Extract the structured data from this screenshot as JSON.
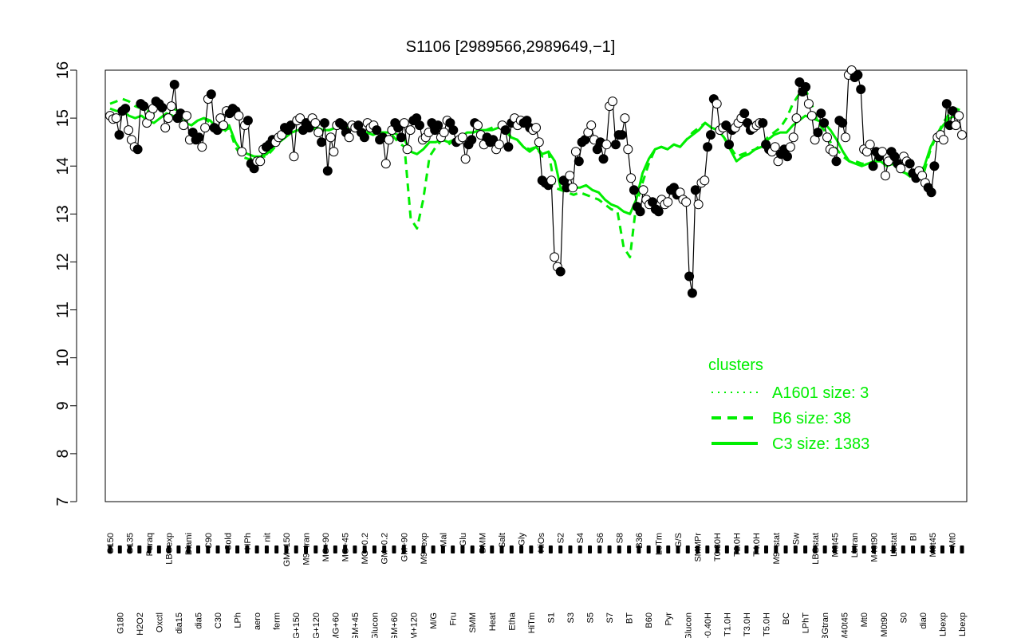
{
  "chart_data": {
    "type": "line",
    "title": "S1106 [2989566,2989649,−1]",
    "xlabel": "",
    "ylabel": "",
    "ylim": [
      7,
      16
    ],
    "yticks": [
      7,
      8,
      9,
      10,
      11,
      12,
      13,
      14,
      15,
      16
    ],
    "grid": false,
    "legend": {
      "title": "clusters",
      "position": "right",
      "entries": [
        {
          "label": "A1601 size: 3",
          "style": "dotted"
        },
        {
          "label": "B6 size: 38",
          "style": "dashed"
        },
        {
          "label": "C3 size: 1383",
          "style": "solid"
        }
      ]
    },
    "colors": {
      "accent": "#00ee00",
      "points": "#000000"
    },
    "x_tick_labels": [
      "G150",
      "G180",
      "G135",
      "H2O2",
      "Paraq",
      "Oxctl",
      "LBGexp",
      "dia15",
      "Diami",
      "dia5",
      "C90",
      "C30",
      "Cold",
      "LPh",
      "HPh",
      "aero",
      "nit",
      "ferm",
      "GM+150",
      "MG+150",
      "M9−tran",
      "MG+120",
      "MG+90",
      "MG+60",
      "MG+45",
      "GM+45",
      "MG−0.2",
      "Glucon",
      "GM−0.2",
      "GM+60",
      "GM+90",
      "GM+120",
      "M9−exp",
      "M/G",
      "Mal",
      "Fru",
      "Glu",
      "SMM",
      "BMM",
      "Heat",
      "Salt",
      "Etha",
      "Gly",
      "HiTm",
      "HiOs",
      "S1",
      "S2",
      "S3",
      "S4",
      "S5",
      "S6",
      "S7",
      "S8",
      "BT",
      "B36",
      "B60",
      "LoTm",
      "Pyr",
      "G/S",
      "Glucon",
      "SMMPr",
      "T−0.40H",
      "T0.30H",
      "T1.0H",
      "T2.0H",
      "T3.0H",
      "T4.0H",
      "T5.0H",
      "M9−stat",
      "BC",
      "Sw",
      "LPhT",
      "LBGstat",
      "LBGtran",
      "M0t45",
      "M40t45",
      "Lbtran",
      "Mt0",
      "M40t90",
      "M0t90",
      "Lbstat",
      "S0",
      "BI",
      "dia0",
      "M0t45",
      "Lbexp",
      "Mt0",
      "Lbexp"
    ],
    "series": [
      {
        "style": "points",
        "values": [
          15.05,
          14.98,
          15.0,
          14.65,
          15.15,
          15.2,
          14.75,
          14.55,
          14.4,
          14.35,
          15.3,
          15.25,
          14.9,
          15.05,
          15.2,
          15.35,
          15.3,
          15.22,
          14.8,
          15.0,
          15.25,
          15.7,
          15.0,
          15.1,
          14.85,
          15.05,
          14.55,
          14.7,
          14.55,
          14.6,
          14.4,
          14.8,
          15.4,
          15.5,
          14.8,
          14.75,
          15.0,
          14.85,
          15.15,
          15.1,
          15.2,
          15.15,
          15.05,
          14.3,
          14.85,
          14.95,
          14.05,
          13.95,
          14.1,
          14.1,
          14.35,
          14.4,
          14.45,
          14.55,
          14.5,
          14.6,
          14.65,
          14.8,
          14.75,
          14.85,
          14.2,
          14.95,
          15.0,
          14.75,
          14.9,
          14.8,
          15.0,
          14.9,
          14.7,
          14.5,
          14.9,
          13.9,
          14.6,
          14.3,
          14.85,
          14.9,
          14.85,
          14.7,
          14.6,
          14.85,
          14.8,
          14.85,
          14.7,
          14.6,
          14.9,
          14.8,
          14.85,
          14.75,
          14.55,
          14.6,
          14.05,
          14.55,
          14.75,
          14.9,
          14.8,
          14.6,
          14.9,
          14.35,
          14.75,
          14.95,
          15.0,
          14.85,
          14.55,
          14.6,
          14.7,
          14.9,
          14.75,
          14.85,
          14.6,
          14.7,
          14.95,
          14.9,
          14.75,
          14.5,
          14.55,
          14.6,
          14.15,
          14.45,
          14.55,
          14.9,
          14.85,
          14.65,
          14.45,
          14.6,
          14.5,
          14.55,
          14.35,
          14.45,
          14.85,
          14.75,
          14.4,
          14.9,
          15.0,
          14.85,
          14.95,
          14.9,
          14.95,
          14.8,
          14.75,
          14.8,
          14.5,
          13.7,
          13.65,
          13.6,
          13.7,
          12.1,
          11.9,
          11.8,
          13.7,
          13.55,
          13.8,
          13.55,
          14.3,
          14.1,
          14.5,
          14.55,
          14.7,
          14.85,
          14.55,
          14.35,
          14.5,
          14.15,
          14.45,
          15.25,
          15.35,
          14.45,
          14.65,
          14.65,
          15.0,
          14.35,
          13.75,
          13.5,
          13.15,
          13.05,
          13.5,
          13.3,
          13.2,
          13.25,
          13.1,
          13.05,
          13.3,
          13.2,
          13.25,
          13.5,
          13.55,
          13.4,
          13.45,
          13.3,
          13.25,
          11.7,
          11.35,
          13.5,
          13.2,
          13.65,
          13.7,
          14.4,
          14.65,
          15.4,
          15.3,
          14.75,
          14.8,
          14.85,
          14.45,
          14.75,
          14.8,
          14.9,
          15.0,
          15.1,
          14.9,
          14.75,
          14.8,
          14.85,
          14.9,
          14.9,
          14.45,
          14.35,
          14.3,
          14.4,
          14.1,
          14.25,
          14.35,
          14.2,
          14.4,
          14.6,
          15.0,
          15.75,
          15.55,
          15.65,
          15.3,
          15.05,
          14.55,
          14.7,
          15.1,
          14.9,
          14.6,
          14.35,
          14.3,
          14.1,
          14.95,
          14.9,
          14.6,
          15.9,
          16.0,
          15.85,
          15.9,
          15.6,
          14.35,
          14.3,
          14.45,
          14.0,
          14.3,
          14.2,
          14.3,
          13.8,
          14.1,
          14.3,
          14.2,
          14.05,
          13.95,
          14.2,
          14.1,
          14.05,
          13.85,
          13.75,
          13.9,
          13.8,
          13.65,
          13.55,
          13.45,
          14.0,
          14.6,
          14.65,
          14.55,
          15.3,
          14.85,
          15.15,
          14.85,
          15.05,
          14.65
        ]
      },
      {
        "name": "C3 size: 1383",
        "style": "solid",
        "values": [
          15.2,
          15.15,
          15.15,
          15.05,
          15.0,
          15.05,
          14.95,
          14.9,
          15.0,
          15.1,
          15.05,
          14.95,
          14.9,
          14.85,
          14.95,
          15.0,
          14.95,
          14.8,
          14.75,
          14.85,
          14.5,
          14.3,
          14.25,
          14.2,
          14.2,
          14.25,
          14.4,
          14.5,
          14.6,
          14.7,
          14.75,
          14.75,
          14.75,
          14.8,
          14.75,
          14.75,
          14.8,
          14.85,
          14.8,
          14.75,
          14.7,
          14.7,
          14.65,
          14.7,
          14.7,
          14.7,
          14.65,
          14.55,
          14.3,
          14.25,
          14.35,
          14.5,
          14.5,
          14.55,
          14.5,
          14.55,
          14.6,
          14.7,
          14.7,
          14.75,
          14.75,
          14.75,
          14.8,
          14.75,
          14.6,
          14.55,
          14.4,
          14.3,
          14.4,
          14.25,
          14.3,
          14.1,
          13.5,
          13.5,
          13.55,
          13.55,
          13.6,
          13.5,
          13.45,
          13.3,
          13.2,
          13.15,
          13.05,
          13.0,
          13.3,
          13.85,
          14.15,
          14.35,
          14.4,
          14.35,
          14.45,
          14.4,
          14.55,
          14.65,
          14.75,
          14.9,
          14.8,
          14.75,
          14.6,
          14.35,
          14.1,
          14.2,
          14.25,
          14.35,
          14.4,
          14.55,
          14.65,
          14.7,
          14.7,
          14.85,
          14.95,
          15.05,
          15.0,
          14.95,
          14.9,
          14.75,
          14.55,
          14.3,
          14.1,
          14.05,
          14.0,
          14.05,
          14.1,
          14.1,
          14.0,
          14.05,
          13.9,
          13.85,
          13.8,
          13.8,
          14.0,
          14.4,
          14.65,
          14.85,
          15.0,
          15.05,
          15.1
        ]
      },
      {
        "name": "B6 size: 38",
        "style": "dashed",
        "values": [
          15.3,
          15.35,
          15.4,
          15.35,
          15.25,
          15.2,
          15.15,
          15.1,
          15.15,
          15.25,
          15.2,
          15.15,
          14.95,
          14.85,
          14.95,
          15.0,
          14.9,
          14.8,
          14.7,
          14.8,
          14.4,
          14.2,
          14.15,
          14.15,
          14.2,
          14.2,
          14.35,
          14.5,
          14.6,
          14.7,
          14.75,
          14.75,
          14.75,
          14.8,
          14.75,
          14.75,
          14.8,
          14.85,
          14.8,
          14.75,
          14.7,
          14.7,
          14.65,
          14.7,
          14.7,
          14.65,
          14.5,
          14.4,
          12.9,
          12.7,
          13.3,
          14.2,
          14.4,
          14.55,
          14.45,
          14.55,
          14.6,
          14.7,
          14.7,
          14.75,
          14.75,
          14.8,
          14.85,
          14.85,
          14.6,
          14.55,
          14.4,
          14.35,
          14.4,
          14.2,
          14.3,
          13.55,
          13.5,
          13.45,
          13.4,
          13.45,
          13.4,
          13.35,
          13.3,
          13.2,
          13.1,
          13.05,
          12.3,
          12.1,
          13.2,
          13.65,
          14.05,
          14.35,
          14.4,
          14.35,
          14.45,
          14.4,
          14.55,
          14.7,
          14.8,
          14.9,
          14.8,
          14.75,
          14.6,
          14.4,
          14.2,
          14.25,
          14.3,
          14.35,
          14.45,
          14.6,
          14.7,
          14.8,
          15.0,
          15.3,
          15.5,
          15.6,
          15.3,
          14.9,
          14.75,
          14.5,
          14.35,
          14.2,
          14.1,
          14.1,
          14.05,
          14.05,
          14.1,
          14.1,
          14.0,
          14.05,
          13.95,
          13.85,
          13.75,
          13.7,
          13.9,
          14.35,
          14.65,
          14.9,
          15.1,
          15.2,
          15.15
        ]
      }
    ]
  }
}
